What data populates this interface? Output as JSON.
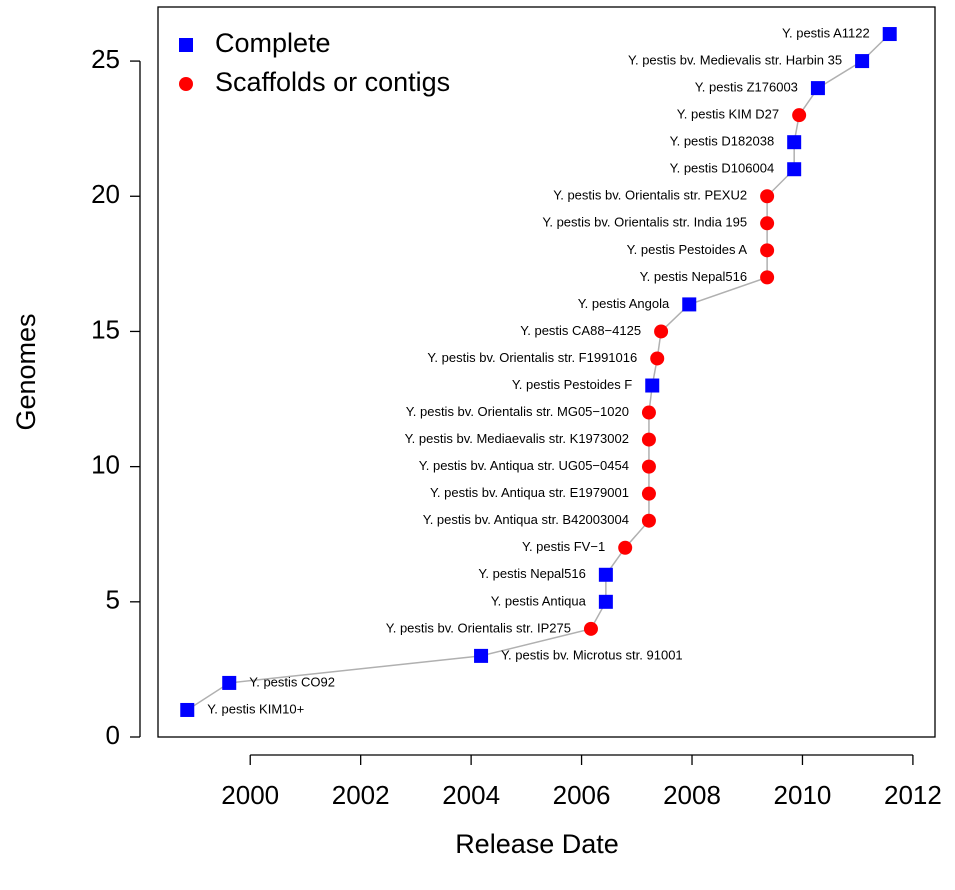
{
  "chart_data": {
    "type": "scatter",
    "xlabel": "Release Date",
    "ylabel": "Genomes",
    "xlim": [
      1998.33,
      2012.4
    ],
    "ylim": [
      0,
      27
    ],
    "xticks": [
      2000,
      2002,
      2004,
      2006,
      2008,
      2010,
      2012
    ],
    "yticks": [
      0,
      5,
      10,
      15,
      20,
      25
    ],
    "line_color": "#b0b0b0",
    "legend_position": "top-left",
    "legend": [
      {
        "name": "Complete",
        "color": "#0000ff",
        "marker": "square"
      },
      {
        "name": "Scaffolds or contigs",
        "color": "#ff0000",
        "marker": "circle"
      }
    ],
    "x": [
      1998.86,
      1999.62,
      2004.18,
      2006.17,
      2006.44,
      2006.44,
      2006.79,
      2007.22,
      2007.22,
      2007.22,
      2007.22,
      2007.22,
      2007.28,
      2007.37,
      2007.44,
      2007.95,
      2009.36,
      2009.36,
      2009.36,
      2009.36,
      2009.85,
      2009.85,
      2009.94,
      2010.28,
      2011.08,
      2011.58
    ],
    "values": [
      1,
      2,
      3,
      4,
      5,
      6,
      7,
      8,
      9,
      10,
      11,
      12,
      13,
      14,
      15,
      16,
      17,
      18,
      19,
      20,
      21,
      22,
      23,
      24,
      25,
      26
    ],
    "groups": [
      0,
      0,
      0,
      1,
      0,
      0,
      1,
      1,
      1,
      1,
      1,
      1,
      0,
      1,
      1,
      0,
      1,
      1,
      1,
      1,
      0,
      0,
      1,
      0,
      0,
      0
    ],
    "point_labels": [
      "Y. pestis KIM10+",
      "Y. pestis CO92",
      "Y. pestis bv. Microtus str. 91001",
      "Y. pestis bv. Orientalis str. IP275",
      "Y. pestis Antiqua",
      "Y. pestis Nepal516",
      "Y. pestis FV−1",
      "Y. pestis bv. Antiqua str. B42003004",
      "Y. pestis bv. Antiqua str. E1979001",
      "Y. pestis bv. Antiqua str. UG05−0454",
      "Y. pestis bv. Mediaevalis str. K1973002",
      "Y. pestis bv. Orientalis str. MG05−1020",
      "Y. pestis Pestoides F",
      "Y. pestis bv. Orientalis str. F1991016",
      "Y. pestis CA88−4125",
      "Y. pestis Angola",
      "Y. pestis Nepal516",
      "Y. pestis Pestoides A",
      "Y. pestis bv. Orientalis str. India 195",
      "Y. pestis bv. Orientalis str. PEXU2",
      "Y. pestis D106004",
      "Y. pestis D182038",
      "Y. pestis KIM D27",
      "Y. pestis Z176003",
      "Y. pestis bv. Medievalis str. Harbin 35",
      "Y. pestis A1122"
    ]
  }
}
